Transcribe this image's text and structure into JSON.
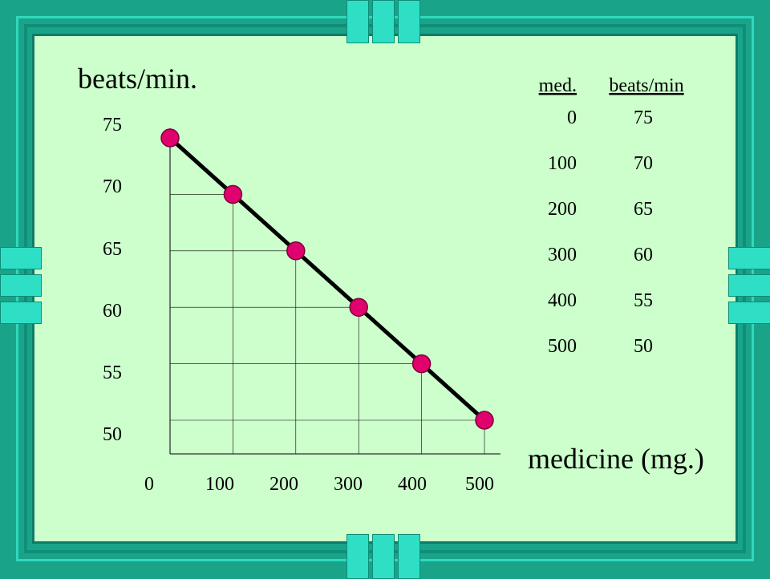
{
  "chart_data": {
    "type": "line",
    "ylabel": "beats/min.",
    "xlabel": "medicine (mg.)",
    "x_ticks": [
      "0",
      "100",
      "200",
      "300",
      "400",
      "500"
    ],
    "y_ticks": [
      "75",
      "70",
      "65",
      "60",
      "55",
      "50"
    ],
    "xlim": [
      0,
      500
    ],
    "ylim": [
      50,
      75
    ],
    "grid": false,
    "series": [
      {
        "x": [
          0,
          100,
          200,
          300,
          400,
          500
        ],
        "y": [
          75,
          70,
          65,
          60,
          55,
          50
        ]
      }
    ],
    "colors": {
      "line": "#000000",
      "marker": "#e0006e"
    }
  },
  "table": {
    "headers": [
      "med.",
      "beats/min"
    ],
    "rows": [
      [
        "0",
        "75"
      ],
      [
        "100",
        "70"
      ],
      [
        "200",
        "65"
      ],
      [
        "300",
        "60"
      ],
      [
        "400",
        "55"
      ],
      [
        "500",
        "50"
      ]
    ]
  },
  "theme": {
    "background": "#19a48a",
    "slide": "#ccffcc",
    "accent": "#2fdfc5"
  }
}
